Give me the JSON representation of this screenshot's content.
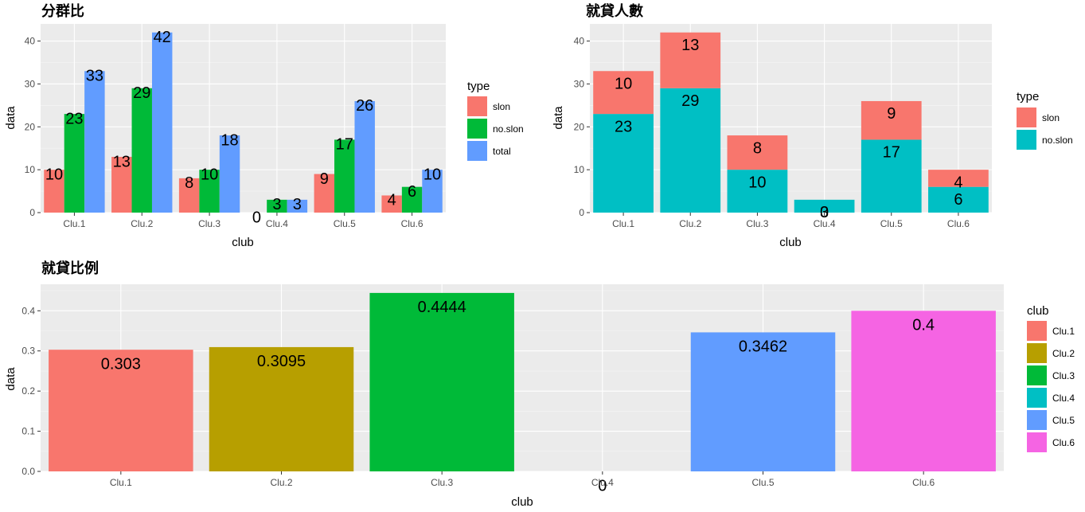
{
  "chart_data": [
    {
      "type": "bar",
      "title": "分群比",
      "xlabel": "club",
      "ylabel": "data",
      "categories": [
        "Clu.1",
        "Clu.2",
        "Clu.3",
        "Clu.4",
        "Clu.5",
        "Clu.6"
      ],
      "ylim": [
        0,
        44
      ],
      "yticks": [
        0,
        10,
        20,
        30,
        40
      ],
      "grid": true,
      "barmode": "group",
      "legend": {
        "title": "type",
        "position": "right"
      },
      "series": [
        {
          "name": "slon",
          "color": "#F8766D",
          "values": [
            10,
            13,
            8,
            0,
            9,
            4
          ]
        },
        {
          "name": "no.slon",
          "color": "#00BA38",
          "values": [
            23,
            29,
            10,
            3,
            17,
            6
          ]
        },
        {
          "name": "total",
          "color": "#619CFF",
          "values": [
            33,
            42,
            18,
            3,
            26,
            10
          ]
        }
      ]
    },
    {
      "type": "bar",
      "title": "就貸人數",
      "xlabel": "club",
      "ylabel": "data",
      "categories": [
        "Clu.1",
        "Clu.2",
        "Clu.3",
        "Clu.4",
        "Clu.5",
        "Clu.6"
      ],
      "ylim": [
        0,
        44
      ],
      "yticks": [
        0,
        10,
        20,
        30,
        40
      ],
      "grid": true,
      "barmode": "stack",
      "legend": {
        "title": "type",
        "position": "right"
      },
      "series": [
        {
          "name": "slon",
          "color": "#F8766D",
          "values": [
            10,
            13,
            8,
            0,
            9,
            4
          ]
        },
        {
          "name": "no.slon",
          "color": "#00BFC4",
          "values": [
            23,
            29,
            10,
            3,
            17,
            6
          ]
        }
      ]
    },
    {
      "type": "bar",
      "title": "就貸比例",
      "xlabel": "club",
      "ylabel": "data",
      "categories": [
        "Clu.1",
        "Clu.2",
        "Clu.3",
        "Clu.4",
        "Clu.5",
        "Clu.6"
      ],
      "ylim": [
        0,
        0.466
      ],
      "yticks": [
        "0.0",
        "0.1",
        "0.2",
        "0.3",
        "0.4"
      ],
      "grid": true,
      "barmode": "single",
      "legend": {
        "title": "club",
        "position": "right"
      },
      "values": [
        0.303,
        0.3095,
        0.4444,
        0,
        0.3462,
        0.4
      ],
      "labels": [
        "0.303",
        "0.3095",
        "0.4444",
        "0",
        "0.3462",
        "0.4"
      ],
      "colors": [
        "#F8766D",
        "#B79F00",
        "#00BA38",
        "#00BFC4",
        "#619CFF",
        "#F564E3"
      ]
    }
  ]
}
